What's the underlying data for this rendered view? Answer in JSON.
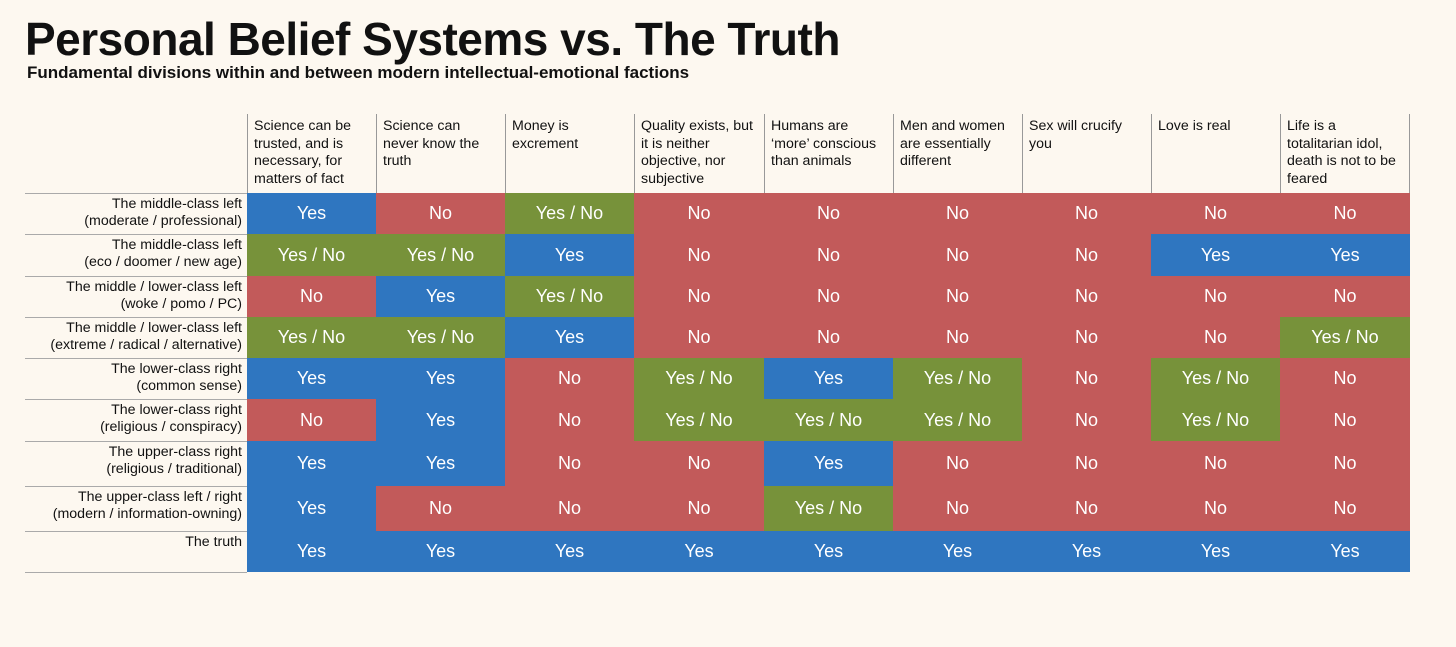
{
  "title": "Personal Belief Systems vs. The Truth",
  "subtitle": "Fundamental divisions within and between modern intellectual-emotional factions",
  "colors": {
    "Yes": "#2f76c0",
    "No": "#c25a5a",
    "Yes / No": "#77923a",
    "background": "#fdf8f0"
  },
  "chart_data": {
    "type": "table",
    "columns": [
      "Science can be trusted, and is necessary, for matters of fact",
      "Science can never know the truth",
      "Money is excrement",
      "Quality exists, but it is neither objective, nor subjective",
      "Humans are ‘more’ conscious than animals",
      "Men and women are essentially different",
      "Sex will crucify you",
      "Love is real",
      "Life is a totalitarian idol, death is not to be feared"
    ],
    "rows": [
      {
        "label": [
          "The middle-class left",
          "(moderate / professional)"
        ],
        "values": [
          "Yes",
          "No",
          "Yes / No",
          "No",
          "No",
          "No",
          "No",
          "No",
          "No"
        ]
      },
      {
        "label": [
          "The middle-class left",
          "(eco / doomer / new age)"
        ],
        "values": [
          "Yes / No",
          "Yes / No",
          "Yes",
          "No",
          "No",
          "No",
          "No",
          "Yes",
          "Yes"
        ]
      },
      {
        "label": [
          "The middle / lower-class left",
          "(woke / pomo / PC)"
        ],
        "values": [
          "No",
          "Yes",
          "Yes / No",
          "No",
          "No",
          "No",
          "No",
          "No",
          "No"
        ]
      },
      {
        "label": [
          "The middle / lower-class left",
          "(extreme / radical / alternative)"
        ],
        "values": [
          "Yes / No",
          "Yes / No",
          "Yes",
          "No",
          "No",
          "No",
          "No",
          "No",
          "Yes / No"
        ]
      },
      {
        "label": [
          "The lower-class right",
          "(common sense)"
        ],
        "values": [
          "Yes",
          "Yes",
          "No",
          "Yes / No",
          "Yes",
          "Yes / No",
          "No",
          "Yes / No",
          "No"
        ]
      },
      {
        "label": [
          "The lower-class right",
          "(religious / conspiracy)"
        ],
        "values": [
          "No",
          "Yes",
          "No",
          "Yes / No",
          "Yes / No",
          "Yes / No",
          "No",
          "Yes / No",
          "No"
        ]
      },
      {
        "label": [
          "The upper-class right",
          "(religious / traditional)"
        ],
        "values": [
          "Yes",
          "Yes",
          "No",
          "No",
          "Yes",
          "No",
          "No",
          "No",
          "No"
        ]
      },
      {
        "label": [
          "The upper-class left / right",
          "(modern / information-owning)"
        ],
        "values": [
          "Yes",
          "No",
          "No",
          "No",
          "Yes / No",
          "No",
          "No",
          "No",
          "No"
        ]
      },
      {
        "label": [
          "The truth"
        ],
        "values": [
          "Yes",
          "Yes",
          "Yes",
          "Yes",
          "Yes",
          "Yes",
          "Yes",
          "Yes",
          "Yes"
        ]
      }
    ]
  }
}
